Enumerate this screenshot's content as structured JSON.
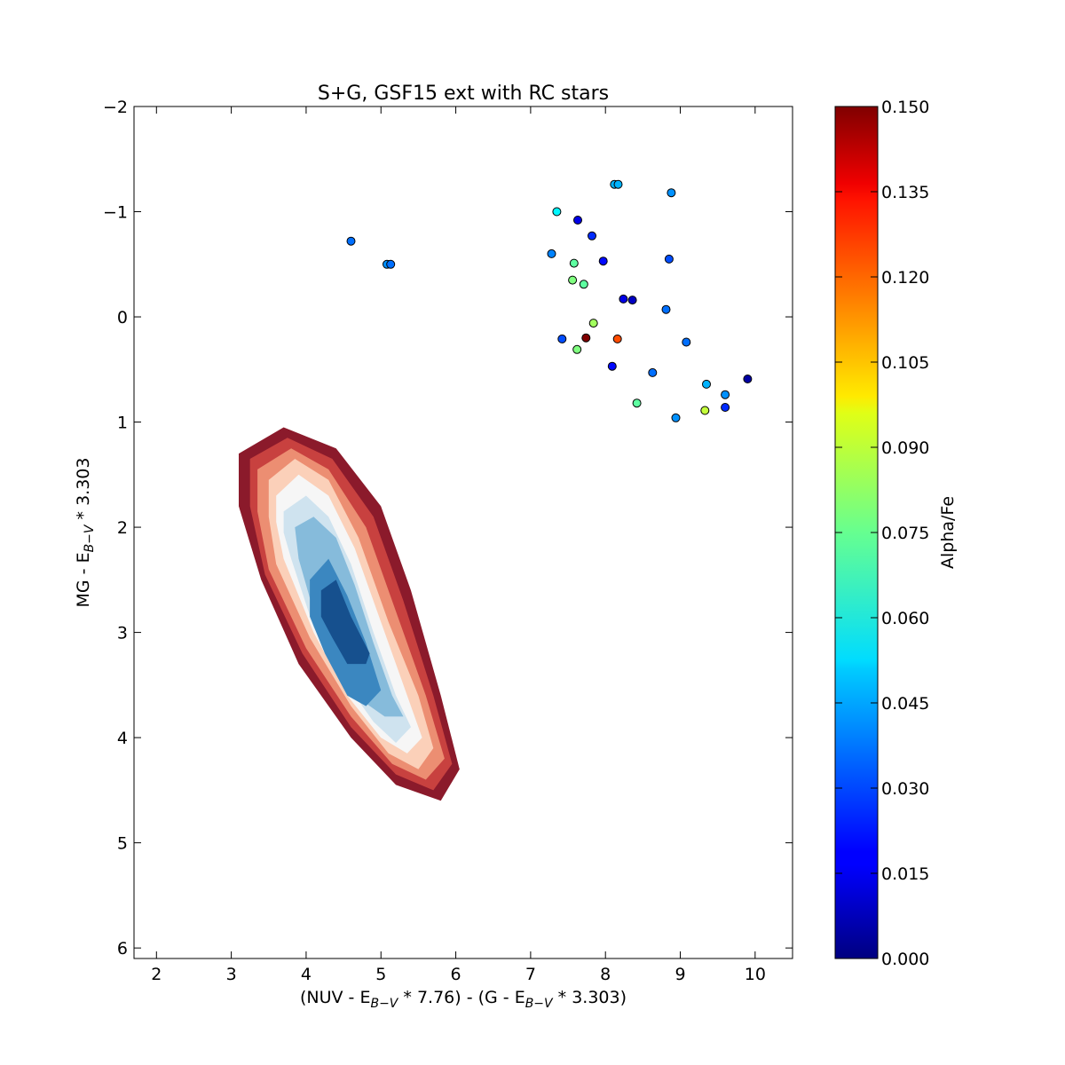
{
  "chart_data": {
    "type": "scatter",
    "title": "S+G, GSF15 ext with RC stars",
    "xlabel": "(NUV - E_{B-V} * 7.76) - (G - E_{B-V} * 3.303)",
    "ylabel": "MG - E_{B-V} * 3.303",
    "xlim": [
      1.7,
      10.5
    ],
    "ylim": [
      6.1,
      -2
    ],
    "y_inverted": true,
    "x_ticks": [
      "2",
      "3",
      "4",
      "5",
      "6",
      "7",
      "8",
      "9",
      "10"
    ],
    "y_ticks": [
      "−2",
      "−1",
      "0",
      "1",
      "2",
      "3",
      "4",
      "5",
      "6"
    ],
    "grid": false,
    "background_points": {
      "description_color": "#000000",
      "main_sequence_core": {
        "x_center": 4.5,
        "y_center": 2.9
      },
      "red_clump_cloud": {
        "x_center": 8.4,
        "y_center": 0.3
      }
    },
    "contour_levels_colors": [
      "#8b1a2b",
      "#c8413f",
      "#ec8e72",
      "#fbd0b9",
      "#f6f6f6",
      "#cfe3ef",
      "#86bbdb",
      "#3b87c0",
      "#16508e"
    ],
    "contours": [
      [
        [
          3.1,
          1.3
        ],
        [
          3.7,
          1.05
        ],
        [
          4.4,
          1.25
        ],
        [
          5.0,
          1.8
        ],
        [
          5.4,
          2.6
        ],
        [
          5.8,
          3.6
        ],
        [
          6.05,
          4.3
        ],
        [
          5.8,
          4.6
        ],
        [
          5.2,
          4.45
        ],
        [
          4.6,
          4.0
        ],
        [
          3.9,
          3.3
        ],
        [
          3.4,
          2.5
        ],
        [
          3.1,
          1.8
        ]
      ],
      [
        [
          3.25,
          1.35
        ],
        [
          3.75,
          1.15
        ],
        [
          4.35,
          1.35
        ],
        [
          4.9,
          1.9
        ],
        [
          5.3,
          2.7
        ],
        [
          5.7,
          3.6
        ],
        [
          5.95,
          4.25
        ],
        [
          5.7,
          4.5
        ],
        [
          5.2,
          4.35
        ],
        [
          4.6,
          3.9
        ],
        [
          3.95,
          3.2
        ],
        [
          3.45,
          2.45
        ],
        [
          3.25,
          1.8
        ]
      ],
      [
        [
          3.35,
          1.45
        ],
        [
          3.8,
          1.25
        ],
        [
          4.3,
          1.45
        ],
        [
          4.8,
          2.0
        ],
        [
          5.2,
          2.8
        ],
        [
          5.6,
          3.6
        ],
        [
          5.85,
          4.2
        ],
        [
          5.6,
          4.4
        ],
        [
          5.15,
          4.25
        ],
        [
          4.6,
          3.8
        ],
        [
          4.0,
          3.15
        ],
        [
          3.5,
          2.4
        ],
        [
          3.35,
          1.85
        ]
      ],
      [
        [
          3.5,
          1.55
        ],
        [
          3.85,
          1.35
        ],
        [
          4.3,
          1.55
        ],
        [
          4.7,
          2.1
        ],
        [
          5.1,
          2.9
        ],
        [
          5.5,
          3.6
        ],
        [
          5.7,
          4.1
        ],
        [
          5.5,
          4.3
        ],
        [
          5.1,
          4.15
        ],
        [
          4.6,
          3.7
        ],
        [
          4.05,
          3.05
        ],
        [
          3.6,
          2.35
        ],
        [
          3.5,
          1.9
        ]
      ],
      [
        [
          3.6,
          1.7
        ],
        [
          3.9,
          1.5
        ],
        [
          4.3,
          1.7
        ],
        [
          4.65,
          2.2
        ],
        [
          5.0,
          2.9
        ],
        [
          5.35,
          3.6
        ],
        [
          5.55,
          4.0
        ],
        [
          5.35,
          4.15
        ],
        [
          5.0,
          4.0
        ],
        [
          4.55,
          3.6
        ],
        [
          4.1,
          3.0
        ],
        [
          3.7,
          2.3
        ],
        [
          3.6,
          1.95
        ]
      ],
      [
        [
          3.7,
          1.85
        ],
        [
          4.0,
          1.7
        ],
        [
          4.3,
          1.9
        ],
        [
          4.6,
          2.35
        ],
        [
          4.9,
          3.0
        ],
        [
          5.2,
          3.6
        ],
        [
          5.4,
          3.9
        ],
        [
          5.2,
          4.05
        ],
        [
          4.9,
          3.85
        ],
        [
          4.5,
          3.45
        ],
        [
          4.1,
          2.95
        ],
        [
          3.8,
          2.3
        ],
        [
          3.7,
          2.05
        ]
      ],
      [
        [
          3.85,
          2.0
        ],
        [
          4.1,
          1.9
        ],
        [
          4.4,
          2.1
        ],
        [
          4.65,
          2.55
        ],
        [
          4.9,
          3.1
        ],
        [
          5.15,
          3.6
        ],
        [
          5.3,
          3.8
        ],
        [
          5.05,
          3.8
        ],
        [
          4.75,
          3.65
        ],
        [
          4.4,
          3.3
        ],
        [
          4.1,
          2.8
        ],
        [
          3.9,
          2.3
        ]
      ],
      [
        [
          4.05,
          2.5
        ],
        [
          4.3,
          2.3
        ],
        [
          4.55,
          2.65
        ],
        [
          4.8,
          3.1
        ],
        [
          5.0,
          3.55
        ],
        [
          4.8,
          3.7
        ],
        [
          4.55,
          3.6
        ],
        [
          4.25,
          3.2
        ],
        [
          4.05,
          2.85
        ]
      ],
      [
        [
          4.2,
          2.6
        ],
        [
          4.4,
          2.5
        ],
        [
          4.6,
          2.85
        ],
        [
          4.85,
          3.2
        ],
        [
          4.8,
          3.3
        ],
        [
          4.55,
          3.3
        ],
        [
          4.35,
          3.05
        ],
        [
          4.2,
          2.85
        ]
      ]
    ],
    "series": [
      {
        "name": "",
        "points": [
          {
            "x": 4.6,
            "y": -0.72,
            "alpha_fe": 0.035
          },
          {
            "x": 5.08,
            "y": -0.5,
            "alpha_fe": 0.04
          },
          {
            "x": 5.13,
            "y": -0.5,
            "alpha_fe": 0.035
          },
          {
            "x": 7.35,
            "y": -1.0,
            "alpha_fe": 0.055
          },
          {
            "x": 7.63,
            "y": -0.92,
            "alpha_fe": 0.015
          },
          {
            "x": 7.28,
            "y": -0.6,
            "alpha_fe": 0.038
          },
          {
            "x": 7.82,
            "y": -0.77,
            "alpha_fe": 0.025
          },
          {
            "x": 8.12,
            "y": -1.26,
            "alpha_fe": 0.045
          },
          {
            "x": 8.17,
            "y": -1.26,
            "alpha_fe": 0.045
          },
          {
            "x": 8.88,
            "y": -1.18,
            "alpha_fe": 0.04
          },
          {
            "x": 7.58,
            "y": -0.51,
            "alpha_fe": 0.07
          },
          {
            "x": 7.97,
            "y": -0.53,
            "alpha_fe": 0.02
          },
          {
            "x": 8.85,
            "y": -0.55,
            "alpha_fe": 0.03
          },
          {
            "x": 7.56,
            "y": -0.35,
            "alpha_fe": 0.075
          },
          {
            "x": 7.71,
            "y": -0.31,
            "alpha_fe": 0.07
          },
          {
            "x": 8.24,
            "y": -0.17,
            "alpha_fe": 0.015
          },
          {
            "x": 8.36,
            "y": -0.16,
            "alpha_fe": 0.01
          },
          {
            "x": 8.81,
            "y": -0.07,
            "alpha_fe": 0.035
          },
          {
            "x": 7.84,
            "y": 0.06,
            "alpha_fe": 0.08
          },
          {
            "x": 7.42,
            "y": 0.21,
            "alpha_fe": 0.03
          },
          {
            "x": 7.74,
            "y": 0.2,
            "alpha_fe": 0.15
          },
          {
            "x": 8.16,
            "y": 0.21,
            "alpha_fe": 0.12
          },
          {
            "x": 9.08,
            "y": 0.24,
            "alpha_fe": 0.035
          },
          {
            "x": 7.62,
            "y": 0.31,
            "alpha_fe": 0.075
          },
          {
            "x": 8.09,
            "y": 0.47,
            "alpha_fe": 0.02
          },
          {
            "x": 8.63,
            "y": 0.53,
            "alpha_fe": 0.035
          },
          {
            "x": 9.35,
            "y": 0.64,
            "alpha_fe": 0.045
          },
          {
            "x": 9.9,
            "y": 0.59,
            "alpha_fe": 0.005
          },
          {
            "x": 9.6,
            "y": 0.74,
            "alpha_fe": 0.04
          },
          {
            "x": 8.42,
            "y": 0.82,
            "alpha_fe": 0.07
          },
          {
            "x": 9.6,
            "y": 0.86,
            "alpha_fe": 0.025
          },
          {
            "x": 9.33,
            "y": 0.89,
            "alpha_fe": 0.085
          },
          {
            "x": 8.94,
            "y": 0.96,
            "alpha_fe": 0.04
          }
        ]
      }
    ],
    "colorbar": {
      "label": "Alpha/Fe",
      "min": 0.0,
      "max": 0.15,
      "colormap": "jet",
      "ticks": [
        "0.000",
        "0.015",
        "0.030",
        "0.045",
        "0.060",
        "0.075",
        "0.090",
        "0.105",
        "0.120",
        "0.135",
        "0.150"
      ]
    }
  }
}
